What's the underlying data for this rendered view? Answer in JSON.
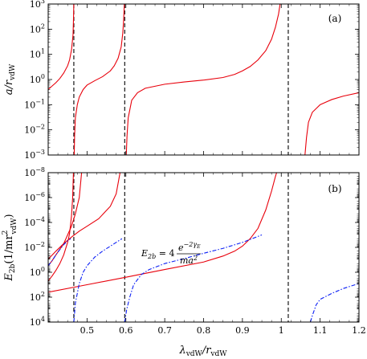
{
  "chart_data": [
    {
      "panel": "a",
      "type": "line",
      "panel_label": "(a)",
      "ylabel_main": "a/r",
      "ylabel_sub": "vdW",
      "yscale": "log",
      "ylim": [
        0.001,
        1000
      ],
      "xlim": [
        0.4,
        1.2
      ],
      "yticks": [
        {
          "value": 1000,
          "base": "10",
          "exp": "3"
        },
        {
          "value": 100,
          "base": "10",
          "exp": "2"
        },
        {
          "value": 10,
          "base": "10",
          "exp": "1"
        },
        {
          "value": 1,
          "base": "10",
          "exp": "0"
        },
        {
          "value": 0.1,
          "base": "10",
          "exp": "−1"
        },
        {
          "value": 0.01,
          "base": "10",
          "exp": "−2"
        },
        {
          "value": 0.001,
          "base": "10",
          "exp": "−3"
        }
      ],
      "resonances": [
        0.466,
        0.597,
        1.018
      ],
      "series": [
        {
          "color": "#e8000b",
          "style": "solid",
          "segments": [
            [
              [
                0.4,
                0.4
              ],
              [
                0.41,
                0.55
              ],
              [
                0.42,
                0.75
              ],
              [
                0.43,
                1.1
              ],
              [
                0.44,
                1.8
              ],
              [
                0.45,
                3.5
              ],
              [
                0.455,
                6.0
              ],
              [
                0.46,
                15.0
              ],
              [
                0.464,
                60.0
              ],
              [
                0.465,
                200.0
              ],
              [
                0.466,
                1000.0
              ]
            ],
            [
              [
                0.467,
                0.001
              ],
              [
                0.468,
                0.006
              ],
              [
                0.47,
                0.03
              ],
              [
                0.475,
                0.1
              ],
              [
                0.48,
                0.2
              ],
              [
                0.49,
                0.4
              ],
              [
                0.5,
                0.6
              ],
              [
                0.52,
                0.9
              ],
              [
                0.54,
                1.3
              ],
              [
                0.56,
                2.2
              ],
              [
                0.57,
                3.5
              ],
              [
                0.58,
                7.0
              ],
              [
                0.588,
                20.0
              ],
              [
                0.592,
                70.0
              ],
              [
                0.594,
                200.0
              ],
              [
                0.596,
                1000.0
              ]
            ],
            [
              [
                0.601,
                0.001
              ],
              [
                0.603,
                0.006
              ],
              [
                0.606,
                0.03
              ],
              [
                0.615,
                0.15
              ],
              [
                0.63,
                0.3
              ],
              [
                0.65,
                0.45
              ],
              [
                0.7,
                0.65
              ],
              [
                0.75,
                0.8
              ],
              [
                0.8,
                0.95
              ],
              [
                0.85,
                1.2
              ],
              [
                0.88,
                1.6
              ],
              [
                0.9,
                2.2
              ],
              [
                0.92,
                3.3
              ],
              [
                0.94,
                6.0
              ],
              [
                0.96,
                14.0
              ],
              [
                0.975,
                40.0
              ],
              [
                0.985,
                120.0
              ],
              [
                0.993,
                400.0
              ],
              [
                0.997,
                1000.0
              ]
            ],
            [
              [
                1.061,
                0.001
              ],
              [
                1.065,
                0.005
              ],
              [
                1.07,
                0.02
              ],
              [
                1.08,
                0.05
              ],
              [
                1.1,
                0.1
              ],
              [
                1.13,
                0.16
              ],
              [
                1.16,
                0.22
              ],
              [
                1.2,
                0.3
              ]
            ]
          ]
        }
      ]
    },
    {
      "panel": "b",
      "type": "line",
      "panel_label": "(b)",
      "ylabel_main": "E",
      "ylabel_sub": "2b",
      "ylabel_unit": "(1/mr",
      "ylabel_unit_sub": "vdW",
      "ylabel_unit_sup": "2",
      "ylabel_close": ")",
      "xlabel_main": "λ",
      "xlabel_sub1": "vdW",
      "xlabel_mid": "/r",
      "xlabel_sub2": "vdW",
      "yscale": "log-inverted",
      "ylim": [
        1e-08,
        10000
      ],
      "xlim": [
        0.4,
        1.2
      ],
      "yticks": [
        {
          "value": 1e-08,
          "base": "10",
          "exp": "−8"
        },
        {
          "value": 1e-06,
          "base": "10",
          "exp": "−6"
        },
        {
          "value": 0.0001,
          "base": "10",
          "exp": "−4"
        },
        {
          "value": 0.01,
          "base": "10",
          "exp": "−2"
        },
        {
          "value": 1,
          "base": "10",
          "exp": "0"
        },
        {
          "value": 100,
          "base": "10",
          "exp": "2"
        },
        {
          "value": 10000,
          "base": "10",
          "exp": "4"
        }
      ],
      "xticks": [
        "0.5",
        "0.6",
        "0.7",
        "0.8",
        "0.9",
        "1",
        "1.1",
        "1.2"
      ],
      "xtick_values": [
        0.5,
        0.6,
        0.7,
        0.8,
        0.9,
        1.0,
        1.1,
        1.2
      ],
      "resonances": [
        0.466,
        0.597,
        1.018
      ],
      "annotation": {
        "prefix": "E",
        "prefix_sub": "2b",
        "equals": " = 4",
        "numerator": "e",
        "numerator_sup": "−2γ",
        "numerator_sup_sub": "E",
        "denominator": "ma",
        "denominator_sup": "2",
        "anchor": [
          0.71,
          0.005
        ]
      },
      "series": [
        {
          "color": "#e8000b",
          "style": "solid",
          "segments": [
            [
              [
                0.4,
                40.0
              ],
              [
                0.5,
                10.0
              ],
              [
                0.6,
                2.5
              ],
              [
                0.7,
                0.6
              ],
              [
                0.8,
                0.15
              ],
              [
                0.85,
                0.05
              ],
              [
                0.88,
                0.02
              ],
              [
                0.9,
                0.008
              ],
              [
                0.92,
                0.002
              ],
              [
                0.94,
                0.0003
              ],
              [
                0.96,
                1e-05
              ],
              [
                0.975,
                3e-07
              ],
              [
                0.985,
                2e-08
              ],
              [
                0.988,
                1e-08
              ]
            ],
            [
              [
                0.4,
                5.0
              ],
              [
                0.41,
                2.0
              ],
              [
                0.42,
                0.7
              ],
              [
                0.43,
                0.2
              ],
              [
                0.44,
                0.04
              ],
              [
                0.45,
                0.004
              ],
              [
                0.455,
                0.0008
              ],
              [
                0.46,
                3e-05
              ],
              [
                0.463,
                1e-06
              ],
              [
                0.465,
                1e-08
              ]
            ],
            [
              [
                0.4,
                0.3
              ],
              [
                0.41,
                0.12
              ],
              [
                0.42,
                0.04
              ],
              [
                0.44,
                0.005
              ],
              [
                0.45,
                0.001
              ],
              [
                0.46,
                0.0002
              ],
              [
                0.47,
                2e-05
              ],
              [
                0.48,
                1e-06
              ],
              [
                0.486,
                1e-08
              ]
            ],
            [
              [
                0.4,
                0.09
              ],
              [
                0.42,
                0.02
              ],
              [
                0.44,
                0.005
              ],
              [
                0.46,
                0.0015
              ],
              [
                0.48,
                0.0005
              ],
              [
                0.5,
                0.0002
              ],
              [
                0.53,
                5e-05
              ],
              [
                0.56,
                5e-06
              ],
              [
                0.575,
                5e-07
              ],
              [
                0.585,
                1e-08
              ]
            ]
          ]
        },
        {
          "color": "#0a1ef5",
          "style": "dashdot",
          "segments": [
            [
              [
                0.4,
                0.3
              ],
              [
                0.41,
                0.12
              ],
              [
                0.42,
                0.04
              ],
              [
                0.43,
                0.015
              ],
              [
                0.44,
                0.006
              ],
              [
                0.45,
                0.003
              ],
              [
                0.458,
                0.002
              ]
            ],
            [
              [
                0.466,
                10000.0
              ],
              [
                0.47,
                300.0
              ],
              [
                0.48,
                8.0
              ],
              [
                0.49,
                1.0
              ],
              [
                0.5,
                0.3
              ],
              [
                0.52,
                0.06
              ],
              [
                0.54,
                0.02
              ],
              [
                0.56,
                0.008
              ],
              [
                0.575,
                0.004
              ],
              [
                0.59,
                0.002
              ]
            ],
            [
              [
                0.597,
                10000.0
              ],
              [
                0.602,
                1000.0
              ],
              [
                0.61,
                100.0
              ],
              [
                0.62,
                10.0
              ],
              [
                0.64,
                1.5
              ],
              [
                0.66,
                0.6
              ],
              [
                0.7,
                0.2
              ],
              [
                0.75,
                0.08
              ],
              [
                0.8,
                0.03
              ],
              [
                0.85,
                0.012
              ],
              [
                0.9,
                0.004
              ],
              [
                0.95,
                0.001
              ]
            ],
            [
              [
                1.075,
                10000.0
              ],
              [
                1.08,
                3000.0
              ],
              [
                1.09,
                400.0
              ],
              [
                1.1,
                150.0
              ],
              [
                1.13,
                50.0
              ],
              [
                1.16,
                20.0
              ],
              [
                1.2,
                8.0
              ]
            ]
          ]
        }
      ]
    }
  ]
}
